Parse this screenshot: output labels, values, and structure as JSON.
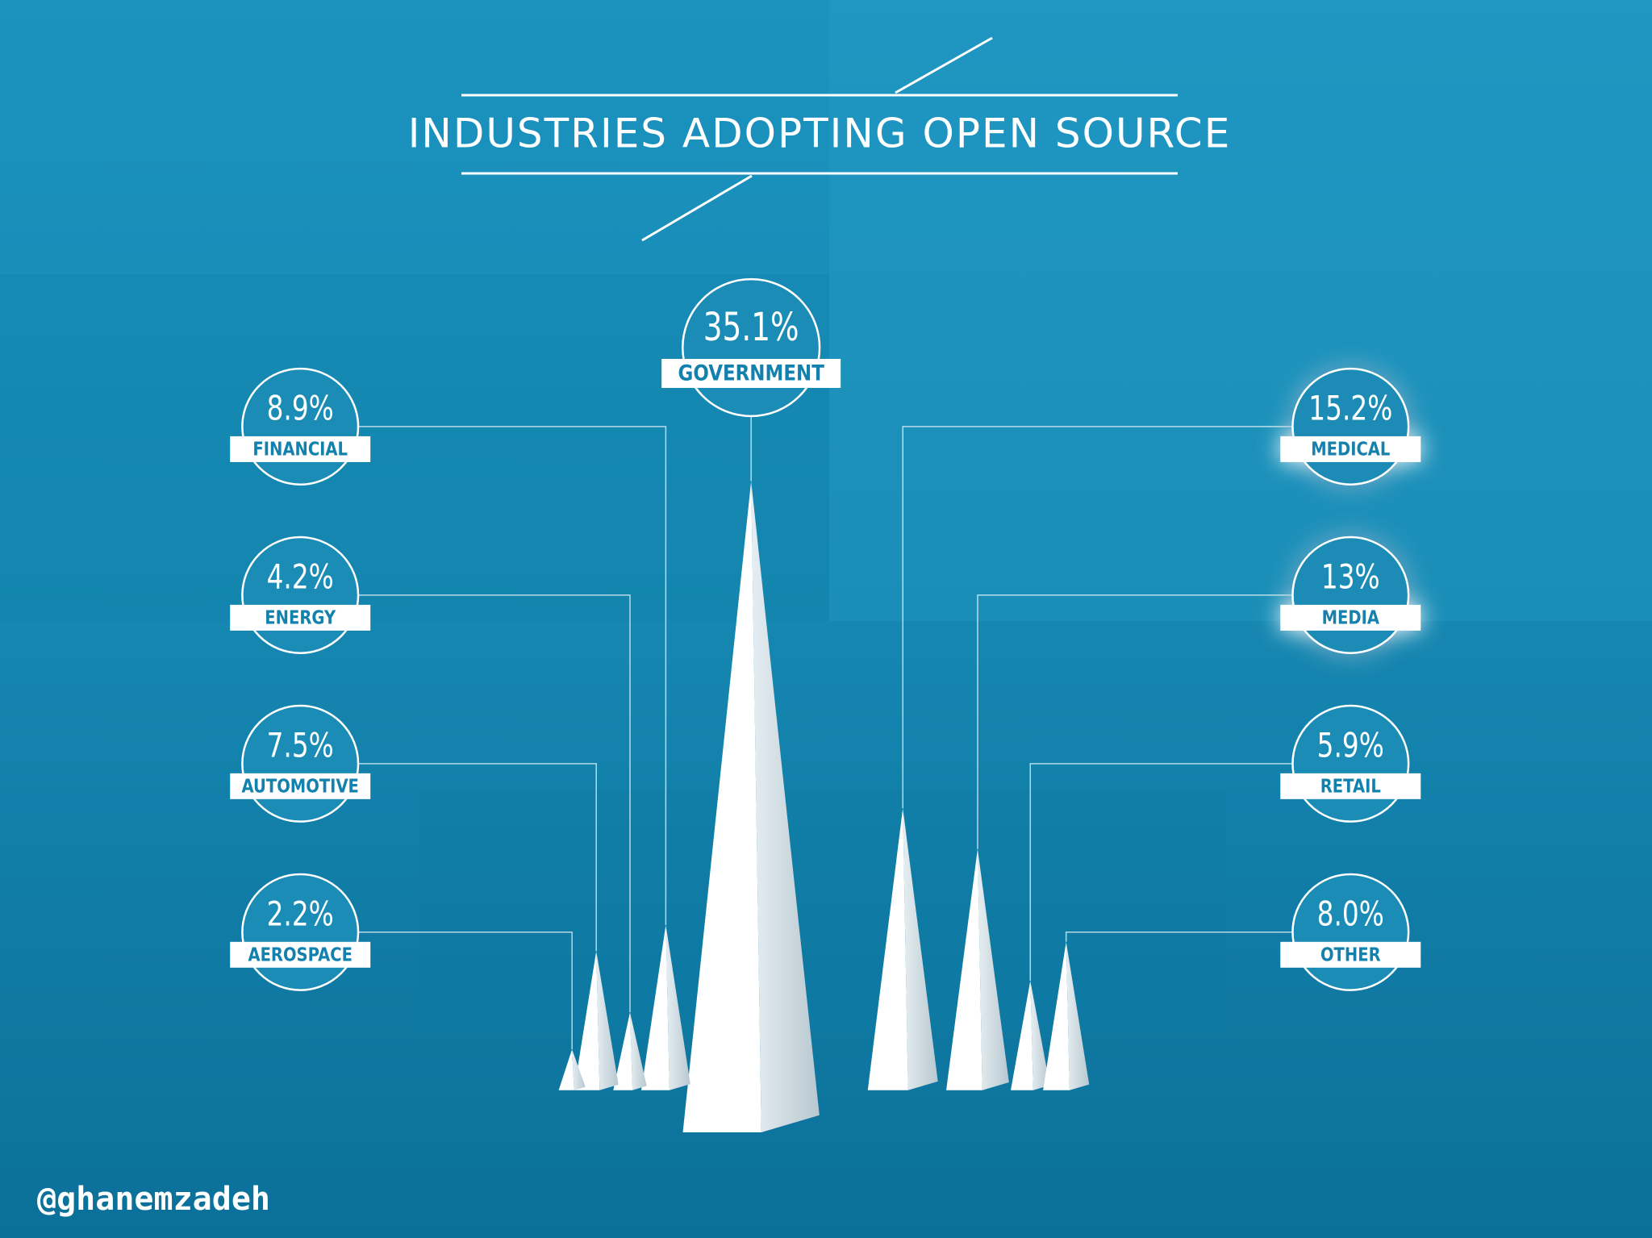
{
  "chart_data": {
    "type": "pyramid",
    "title": "INDUSTRIES ADOPTING OPEN SOURCE",
    "categories": [
      "GOVERNMENT",
      "FINANCIAL",
      "ENERGY",
      "AUTOMOTIVE",
      "AEROSPACE",
      "MEDICAL",
      "MEDIA",
      "RETAIL",
      "OTHER"
    ],
    "values": [
      35.1,
      8.9,
      4.2,
      7.5,
      2.2,
      15.2,
      13,
      5.9,
      8.0
    ],
    "value_labels": [
      "35.1%",
      "8.9%",
      "4.2%",
      "7.5%",
      "2.2%",
      "15.2%",
      "13%",
      "5.9%",
      "8.0%"
    ],
    "color": "#ffffff",
    "annotation": "@ghanemzadeh"
  }
}
